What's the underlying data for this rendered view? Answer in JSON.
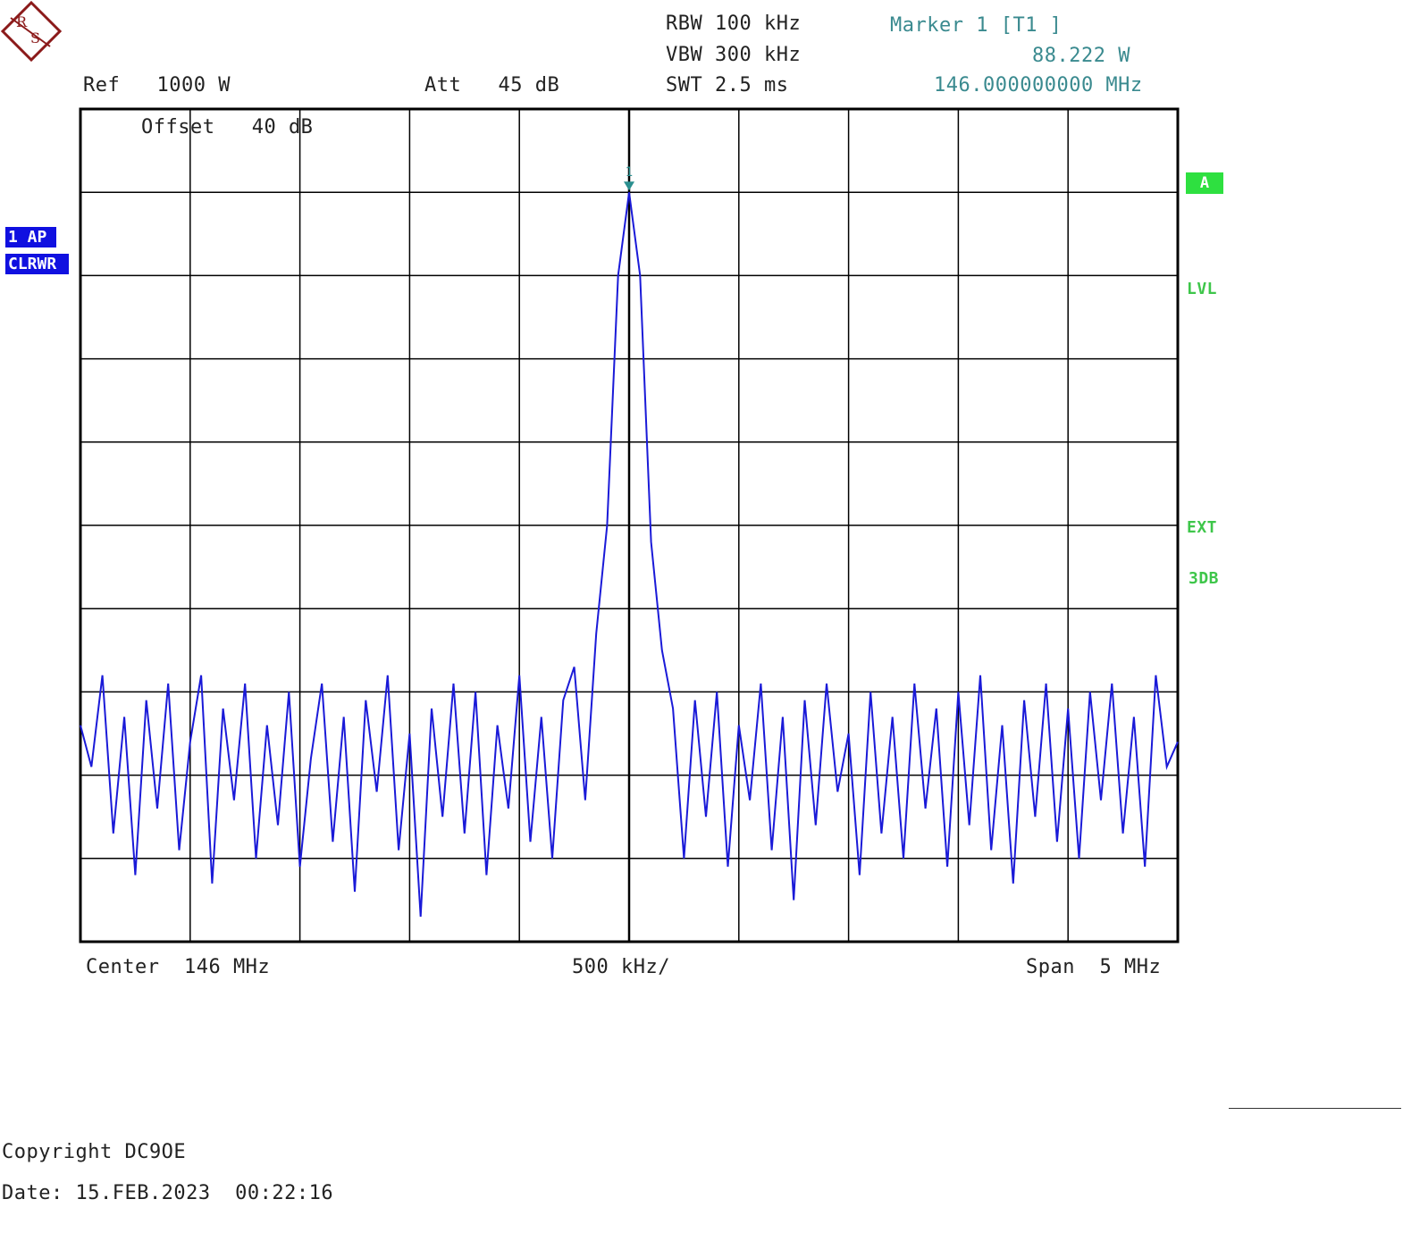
{
  "header": {
    "ref": "Ref   1000 W",
    "offset": "Offset   40 dB",
    "att": "Att   45 dB",
    "rbw": "RBW 100 kHz",
    "vbw": "VBW 300 kHz",
    "swt": "SWT 2.5 ms",
    "marker_title": "Marker 1 [T1 ]",
    "marker_level": "88.222 W",
    "marker_freq": "146.000000000 MHz"
  },
  "side": {
    "trace_badge": "1 AP",
    "mode_badge": "CLRWR",
    "a_badge": "A",
    "lvl": "LVL",
    "ext": "EXT",
    "db3": "3DB"
  },
  "footer": {
    "center": "Center  146 MHz",
    "div": "500 kHz/",
    "span": "Span  5 MHz",
    "copyright": "Copyright DC9OE",
    "date": "Date: 15.FEB.2023  00:22:16"
  },
  "colors": {
    "trace": "#1a1ad8",
    "marker": "#2a8f8f",
    "grid": "#000000"
  },
  "chart_data": {
    "type": "line",
    "title": "",
    "xlabel": "",
    "ylabel": "",
    "x_unit": "MHz",
    "center_mhz": 146,
    "span_mhz": 5,
    "xlim": [
      143.5,
      148.5
    ],
    "x_div": "500 kHz/",
    "y_divisions_from_top": 10,
    "grid": true,
    "marker": {
      "x": 146.0,
      "value": "88.222 W",
      "label": "1"
    },
    "series": [
      {
        "y_unit": "divisions from top",
        "points": [
          [
            143.5,
            7.4
          ],
          [
            143.55,
            7.9
          ],
          [
            143.6,
            6.8
          ],
          [
            143.65,
            8.7
          ],
          [
            143.7,
            7.3
          ],
          [
            143.75,
            9.2
          ],
          [
            143.8,
            7.1
          ],
          [
            143.85,
            8.4
          ],
          [
            143.9,
            6.9
          ],
          [
            143.95,
            8.9
          ],
          [
            144.0,
            7.6
          ],
          [
            144.05,
            6.8
          ],
          [
            144.1,
            9.3
          ],
          [
            144.15,
            7.2
          ],
          [
            144.2,
            8.3
          ],
          [
            144.25,
            6.9
          ],
          [
            144.3,
            9.0
          ],
          [
            144.35,
            7.4
          ],
          [
            144.4,
            8.6
          ],
          [
            144.45,
            7.0
          ],
          [
            144.5,
            9.1
          ],
          [
            144.55,
            7.8
          ],
          [
            144.6,
            6.9
          ],
          [
            144.65,
            8.8
          ],
          [
            144.7,
            7.3
          ],
          [
            144.75,
            9.4
          ],
          [
            144.8,
            7.1
          ],
          [
            144.85,
            8.2
          ],
          [
            144.9,
            6.8
          ],
          [
            144.95,
            8.9
          ],
          [
            145.0,
            7.5
          ],
          [
            145.05,
            9.7
          ],
          [
            145.1,
            7.2
          ],
          [
            145.15,
            8.5
          ],
          [
            145.2,
            6.9
          ],
          [
            145.25,
            8.7
          ],
          [
            145.3,
            7.0
          ],
          [
            145.35,
            9.2
          ],
          [
            145.4,
            7.4
          ],
          [
            145.45,
            8.4
          ],
          [
            145.5,
            6.8
          ],
          [
            145.55,
            8.8
          ],
          [
            145.6,
            7.3
          ],
          [
            145.65,
            9.0
          ],
          [
            145.7,
            7.1
          ],
          [
            145.75,
            6.7
          ],
          [
            145.8,
            8.3
          ],
          [
            145.85,
            6.3
          ],
          [
            145.9,
            5.0
          ],
          [
            145.95,
            2.0
          ],
          [
            146.0,
            1.0
          ],
          [
            146.05,
            2.0
          ],
          [
            146.1,
            5.2
          ],
          [
            146.15,
            6.5
          ],
          [
            146.2,
            7.2
          ],
          [
            146.25,
            9.0
          ],
          [
            146.3,
            7.1
          ],
          [
            146.35,
            8.5
          ],
          [
            146.4,
            7.0
          ],
          [
            146.45,
            9.1
          ],
          [
            146.5,
            7.4
          ],
          [
            146.55,
            8.3
          ],
          [
            146.6,
            6.9
          ],
          [
            146.65,
            8.9
          ],
          [
            146.7,
            7.3
          ],
          [
            146.75,
            9.5
          ],
          [
            146.8,
            7.1
          ],
          [
            146.85,
            8.6
          ],
          [
            146.9,
            6.9
          ],
          [
            146.95,
            8.2
          ],
          [
            147.0,
            7.5
          ],
          [
            147.05,
            9.2
          ],
          [
            147.1,
            7.0
          ],
          [
            147.15,
            8.7
          ],
          [
            147.2,
            7.3
          ],
          [
            147.25,
            9.0
          ],
          [
            147.3,
            6.9
          ],
          [
            147.35,
            8.4
          ],
          [
            147.4,
            7.2
          ],
          [
            147.45,
            9.1
          ],
          [
            147.5,
            7.0
          ],
          [
            147.55,
            8.6
          ],
          [
            147.6,
            6.8
          ],
          [
            147.65,
            8.9
          ],
          [
            147.7,
            7.4
          ],
          [
            147.75,
            9.3
          ],
          [
            147.8,
            7.1
          ],
          [
            147.85,
            8.5
          ],
          [
            147.9,
            6.9
          ],
          [
            147.95,
            8.8
          ],
          [
            148.0,
            7.2
          ],
          [
            148.05,
            9.0
          ],
          [
            148.1,
            7.0
          ],
          [
            148.15,
            8.3
          ],
          [
            148.2,
            6.9
          ],
          [
            148.25,
            8.7
          ],
          [
            148.3,
            7.3
          ],
          [
            148.35,
            9.1
          ],
          [
            148.4,
            6.8
          ],
          [
            148.45,
            7.9
          ],
          [
            148.5,
            7.6
          ]
        ]
      }
    ]
  }
}
